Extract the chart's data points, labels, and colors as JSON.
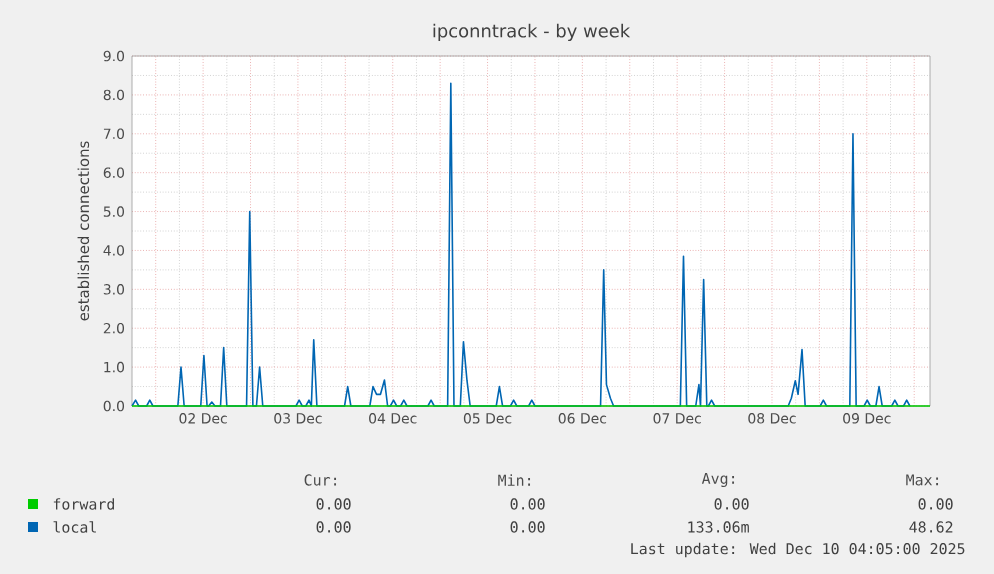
{
  "chart_data": {
    "type": "line",
    "title": "ipconntrack - by week",
    "ylabel": "established connections",
    "xlim": [
      "2025-12-01T18:00",
      "2025-12-10T04:00"
    ],
    "ylim": [
      0,
      9
    ],
    "xticks": [
      {
        "value": "2025-12-02T00:00",
        "label": null
      },
      {
        "value": "2025-12-02T12:00",
        "label": "02 Dec"
      },
      {
        "value": "2025-12-03T00:00",
        "label": null
      },
      {
        "value": "2025-12-03T12:00",
        "label": "03 Dec"
      },
      {
        "value": "2025-12-04T00:00",
        "label": null
      },
      {
        "value": "2025-12-04T12:00",
        "label": "04 Dec"
      },
      {
        "value": "2025-12-05T00:00",
        "label": null
      },
      {
        "value": "2025-12-05T12:00",
        "label": "05 Dec"
      },
      {
        "value": "2025-12-06T00:00",
        "label": null
      },
      {
        "value": "2025-12-06T12:00",
        "label": "06 Dec"
      },
      {
        "value": "2025-12-07T00:00",
        "label": null
      },
      {
        "value": "2025-12-07T12:00",
        "label": "07 Dec"
      },
      {
        "value": "2025-12-08T00:00",
        "label": null
      },
      {
        "value": "2025-12-08T12:00",
        "label": "08 Dec"
      },
      {
        "value": "2025-12-09T00:00",
        "label": null
      },
      {
        "value": "2025-12-09T12:00",
        "label": "09 Dec"
      },
      {
        "value": "2025-12-10T00:00",
        "label": null
      }
    ],
    "yticks": [
      {
        "value": 0,
        "label": "0.0"
      },
      {
        "value": 1,
        "label": "1.0"
      },
      {
        "value": 2,
        "label": "2.0"
      },
      {
        "value": 3,
        "label": "3.0"
      },
      {
        "value": 4,
        "label": "4.0"
      },
      {
        "value": 5,
        "label": "5.0"
      },
      {
        "value": 6,
        "label": "6.0"
      },
      {
        "value": 7,
        "label": "7.0"
      },
      {
        "value": 8,
        "label": "8.0"
      },
      {
        "value": 9,
        "label": "9.0"
      }
    ],
    "grid": true,
    "legend": "bottom left",
    "series": [
      {
        "name": "local",
        "color": "#0066b3",
        "x": [
          "2025-12-01T18:00",
          "2025-12-01T18:54",
          "2025-12-01T19:42",
          "2025-12-01T21:42",
          "2025-12-01T22:30",
          "2025-12-01T23:18",
          "2025-12-02T05:36",
          "2025-12-02T06:24",
          "2025-12-02T07:12",
          "2025-12-02T11:24",
          "2025-12-02T12:12",
          "2025-12-02T13:00",
          "2025-12-02T13:24",
          "2025-12-02T14:12",
          "2025-12-02T15:00",
          "2025-12-02T16:24",
          "2025-12-02T17:12",
          "2025-12-02T18:00",
          "2025-12-02T23:00",
          "2025-12-02T23:48",
          "2025-12-03T00:36",
          "2025-12-03T01:30",
          "2025-12-03T02:18",
          "2025-12-03T03:06",
          "2025-12-03T11:30",
          "2025-12-03T12:18",
          "2025-12-03T13:06",
          "2025-12-03T14:00",
          "2025-12-03T14:48",
          "2025-12-03T15:24",
          "2025-12-03T16:00",
          "2025-12-03T16:48",
          "2025-12-03T23:48",
          "2025-12-04T00:36",
          "2025-12-04T01:24",
          "2025-12-04T06:12",
          "2025-12-04T07:00",
          "2025-12-04T07:54",
          "2025-12-04T08:54",
          "2025-12-04T09:54",
          "2025-12-04T10:42",
          "2025-12-04T11:24",
          "2025-12-04T12:12",
          "2025-12-04T13:00",
          "2025-12-04T14:00",
          "2025-12-04T14:48",
          "2025-12-04T15:36",
          "2025-12-04T20:54",
          "2025-12-04T21:42",
          "2025-12-04T22:30",
          "2025-12-05T01:54",
          "2025-12-05T02:42",
          "2025-12-05T03:30",
          "2025-12-05T05:06",
          "2025-12-05T05:54",
          "2025-12-05T06:48",
          "2025-12-05T07:36",
          "2025-12-05T14:12",
          "2025-12-05T15:00",
          "2025-12-05T15:48",
          "2025-12-05T17:48",
          "2025-12-05T18:36",
          "2025-12-05T19:24",
          "2025-12-05T22:24",
          "2025-12-05T23:12",
          "2025-12-06T00:00",
          "2025-12-06T16:36",
          "2025-12-06T17:24",
          "2025-12-06T18:06",
          "2025-12-06T19:06",
          "2025-12-06T19:54",
          "2025-12-07T12:48",
          "2025-12-07T13:36",
          "2025-12-07T14:24",
          "2025-12-07T16:42",
          "2025-12-07T17:30",
          "2025-12-07T17:54",
          "2025-12-07T18:42",
          "2025-12-07T19:30",
          "2025-12-07T19:54",
          "2025-12-07T20:42",
          "2025-12-07T21:30",
          "2025-12-08T16:06",
          "2025-12-08T16:54",
          "2025-12-08T17:54",
          "2025-12-08T18:36",
          "2025-12-08T19:36",
          "2025-12-08T20:24",
          "2025-12-09T00:12",
          "2025-12-09T01:00",
          "2025-12-09T01:48",
          "2025-12-09T07:42",
          "2025-12-09T08:30",
          "2025-12-09T09:18",
          "2025-12-09T11:18",
          "2025-12-09T12:06",
          "2025-12-09T12:54",
          "2025-12-09T14:18",
          "2025-12-09T15:06",
          "2025-12-09T15:54",
          "2025-12-09T18:18",
          "2025-12-09T19:06",
          "2025-12-09T19:54",
          "2025-12-09T21:18",
          "2025-12-09T22:06",
          "2025-12-09T22:54"
        ],
        "values": [
          0,
          0.15,
          0,
          0,
          0.15,
          0,
          0,
          1.0,
          0,
          0,
          1.3,
          0,
          0,
          0.1,
          0,
          0,
          1.5,
          0,
          0,
          5.0,
          0,
          0,
          1.0,
          0,
          0,
          0.15,
          0,
          0,
          0.15,
          0,
          1.7,
          0,
          0,
          0.5,
          0,
          0,
          0.5,
          0.3,
          0.3,
          0.67,
          0,
          0,
          0.15,
          0,
          0,
          0.15,
          0,
          0,
          0.15,
          0,
          0,
          8.3,
          0,
          0,
          1.65,
          0.65,
          0,
          0,
          0.5,
          0,
          0,
          0.15,
          0,
          0,
          0.15,
          0,
          0,
          3.5,
          0.55,
          0.2,
          0,
          0,
          3.85,
          0,
          0,
          0.55,
          0,
          3.25,
          0,
          0,
          0.15,
          0,
          0,
          0.2,
          0.65,
          0.3,
          1.45,
          0,
          0,
          0.15,
          0,
          0,
          7.0,
          0,
          0,
          0.15,
          0,
          0,
          0.5,
          0,
          0,
          0.15,
          0,
          0,
          0.15,
          0
        ]
      },
      {
        "name": "forward",
        "color": "#00cc00",
        "x": [
          "2025-12-01T18:00",
          "2025-12-10T04:00"
        ],
        "values": [
          0,
          0
        ]
      }
    ],
    "annotations": [
      "Cur:",
      "Min:",
      "Avg:",
      "Max:",
      "0.00",
      "0.00",
      "0.00",
      "0.00",
      "0.00",
      "0.00",
      "133.06m",
      "48.62",
      "Last update: Wed Dec 10 04:05:00 2025"
    ]
  }
}
